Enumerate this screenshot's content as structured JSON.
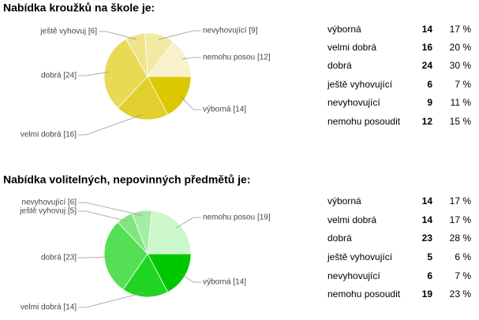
{
  "chart_data": [
    {
      "type": "pie",
      "title": "Nabídka kroužků na škole je:",
      "categories": [
        "výborná",
        "velmi dobrá",
        "dobrá",
        "ještě vyhovující",
        "nevyhovující",
        "nemohu posoudit"
      ],
      "values": [
        14,
        16,
        24,
        6,
        9,
        12
      ],
      "percent_labels": [
        "17 %",
        "20 %",
        "30 %",
        "7 %",
        "11 %",
        "15 %"
      ],
      "slice_labels": [
        "výborná [14]",
        "velmi dobrá [16]",
        "dobrá [24]",
        "ještě vyhovuj [6]",
        "nevyhovující [9]",
        "nemohu posou [12]"
      ],
      "colors": [
        "#dcc800",
        "#e1cf2e",
        "#e8da55",
        "#efe48a",
        "#f2e9a3",
        "#f7f1cc"
      ]
    },
    {
      "type": "pie",
      "title": "Nabídka volitelných, nepovinných předmětů je:",
      "categories": [
        "výborná",
        "velmi dobrá",
        "dobrá",
        "ještě vyhovující",
        "nevyhovující",
        "nemohu posoudit"
      ],
      "values": [
        14,
        14,
        23,
        5,
        6,
        19
      ],
      "percent_labels": [
        "17 %",
        "17 %",
        "28 %",
        "6 %",
        "7 %",
        "23 %"
      ],
      "slice_labels": [
        "výborná [14]",
        "velmi dobrá [14]",
        "dobrá [23]",
        "ještě vyhovuj [5]",
        "nevyhovující [6]",
        "nemohu posou [19]"
      ],
      "colors": [
        "#00c800",
        "#22d422",
        "#55df55",
        "#7fe67f",
        "#a3eca3",
        "#ccf6cc"
      ]
    }
  ]
}
